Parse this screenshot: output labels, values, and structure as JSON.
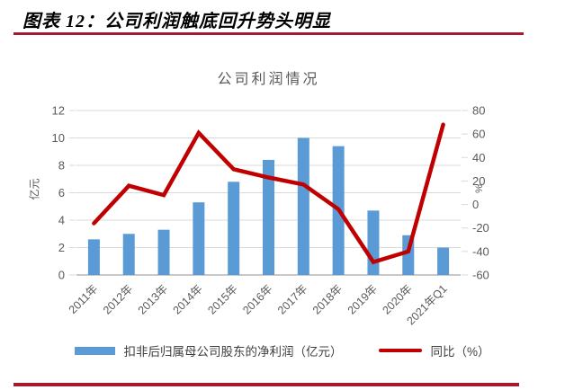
{
  "document": {
    "title": "图表 12：公司利润触底回升势头明显"
  },
  "chart_data": {
    "type": "bar+line",
    "title": "公司利润情况",
    "categories": [
      "2011年",
      "2012年",
      "2013年",
      "2014年",
      "2015年",
      "2016年",
      "2017年",
      "2018年",
      "2019年",
      "2020年",
      "2021年Q1"
    ],
    "series": [
      {
        "name": "扣非后归属母公司股东的净利润（亿元）",
        "type": "bar",
        "axis": "left",
        "color": "#5B9BD5",
        "values": [
          2.6,
          3.0,
          3.3,
          5.3,
          6.8,
          8.4,
          10.0,
          9.4,
          4.7,
          2.9,
          2.0
        ]
      },
      {
        "name": "同比（%）",
        "type": "line",
        "axis": "right",
        "color": "#C00000",
        "values": [
          -16,
          16,
          8,
          61,
          30,
          23,
          17,
          -4,
          -49,
          -40,
          68
        ]
      }
    ],
    "left_axis": {
      "label": "亿元",
      "min": 0,
      "max": 12,
      "ticks": [
        0,
        2,
        4,
        6,
        8,
        10,
        12
      ]
    },
    "right_axis": {
      "label": "%",
      "min": -60,
      "max": 80,
      "ticks": [
        80,
        60,
        40,
        20,
        0,
        -20,
        -40,
        -60
      ]
    },
    "legend_position": "bottom",
    "grid": true
  },
  "theme": {
    "bar_color": "#5B9BD5",
    "line_color": "#C00000",
    "rule_color": "#A6192E",
    "grid_color": "#D9D9D9",
    "axis_color": "#A6A6A6",
    "text_color": "#595959"
  }
}
